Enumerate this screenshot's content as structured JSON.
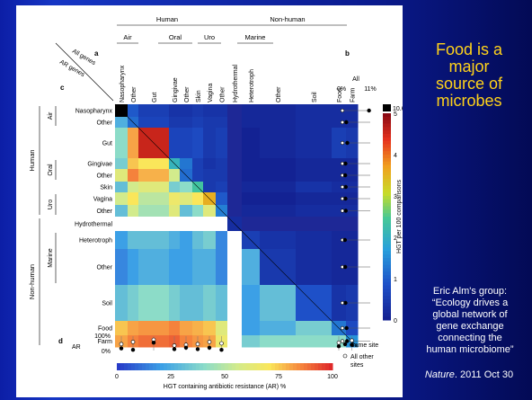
{
  "slide": {
    "headline": [
      "Food is a",
      "major",
      "source of",
      "microbes"
    ],
    "citation": [
      "Eric Alm's group:",
      "“Ecology drives a",
      "global network of",
      "gene exchange",
      "connecting the",
      "human microbiome”"
    ],
    "journal_name": "Nature",
    "journal_date": ". 2011 Oct 30",
    "colors": {
      "headline": "#ffd21a",
      "background": "#0c1ea6"
    }
  },
  "figure": {
    "panel_labels": {
      "a": "a",
      "b": "b",
      "c": "c",
      "d": "d"
    },
    "diag_labels": {
      "all_genes": "All genes",
      "ar_genes": "AR genes"
    },
    "top_groups": {
      "human": "Human",
      "non_human": "Non-human"
    },
    "top_subgroups": [
      "Air",
      "Oral",
      "Uro",
      "Marine"
    ],
    "left_groups": {
      "human": "Human",
      "non_human": "Non-human"
    },
    "left_subgroups": [
      "Air",
      "Oral",
      "Uro",
      "Marine"
    ],
    "columns": [
      "Nasopharynx",
      "Other",
      "Gut",
      "Gingivae",
      "Other",
      "Skin",
      "Vagina",
      "Other",
      "Hydrothermal",
      "Heterotroph",
      "Other",
      "Soil",
      "Food",
      "Farm"
    ],
    "rows": [
      "Nasopharynx",
      "Other",
      "Gut",
      "Gingivae",
      "Other",
      "Skin",
      "Vagina",
      "Other",
      "Hydrothermal",
      "Heterotroph",
      "Other",
      "Soil",
      "Food",
      "Farm"
    ],
    "panel_b": {
      "header": "All",
      "tick_low": "0%",
      "tick_high": "11%"
    },
    "colorbar_right": {
      "label": "HGT per 100 comparisons",
      "top_value": "10.6",
      "ticks": [
        "5",
        "4",
        "3",
        "2",
        "1",
        "0"
      ]
    },
    "panel_d": {
      "label": "AR",
      "ticks": [
        "100%",
        "0%"
      ],
      "legend_same": "Same site",
      "legend_other": "All other",
      "legend_other2": "sites"
    },
    "colorbar_bottom": {
      "label": "HGT containing antibiotic resistance (AR) %",
      "ticks": [
        "0",
        "25",
        "50",
        "75",
        "100"
      ]
    }
  },
  "chart_data": {
    "type": "heatmap",
    "title": "",
    "rows": [
      "Nasopharynx",
      "Other",
      "Gut",
      "Gingivae",
      "Other",
      "Skin",
      "Vagina",
      "Other",
      "Hydrothermal",
      "Heterotroph",
      "Other",
      "Soil",
      "Food",
      "Farm"
    ],
    "columns": [
      "Nasopharynx",
      "Other",
      "Gut",
      "Gingivae",
      "Other",
      "Skin",
      "Vagina",
      "Other",
      "Hydrothermal",
      "Heterotroph",
      "Other",
      "Soil",
      "Food",
      "Farm"
    ],
    "upper_triangle": "HGT per 100 comparisons",
    "upper_range": [
      0,
      5
    ],
    "lower_triangle": "HGT containing antibiotic resistance (AR) %",
    "lower_range": [
      0,
      100
    ],
    "upper_values": [
      [
        10.6,
        1.0,
        0.6,
        0.4,
        0.4,
        0.5,
        0.4,
        0.4,
        0.1,
        0.2,
        0.2,
        0.3,
        0.3,
        0.3
      ],
      [
        1.0,
        1.2,
        0.7,
        0.5,
        0.5,
        0.6,
        0.5,
        0.5,
        0.1,
        0.2,
        0.2,
        0.3,
        0.3,
        0.3
      ],
      [
        0.6,
        0.7,
        4.6,
        0.7,
        0.7,
        0.8,
        0.5,
        0.6,
        0.1,
        0.1,
        0.2,
        0.3,
        0.6,
        0.5
      ],
      [
        0.4,
        0.5,
        0.7,
        2.1,
        1.3,
        0.6,
        0.4,
        0.5,
        0.1,
        0.1,
        0.1,
        0.2,
        0.2,
        0.2
      ],
      [
        0.4,
        0.5,
        0.7,
        1.3,
        1.2,
        0.6,
        0.5,
        0.5,
        0.1,
        0.1,
        0.1,
        0.2,
        0.2,
        0.2
      ],
      [
        0.5,
        0.6,
        0.8,
        0.6,
        0.6,
        2.4,
        0.5,
        0.6,
        0.1,
        0.2,
        0.2,
        0.4,
        0.3,
        0.3
      ],
      [
        0.4,
        0.5,
        0.5,
        0.4,
        0.5,
        0.5,
        3.6,
        1.0,
        0.1,
        0.1,
        0.1,
        0.2,
        0.2,
        0.2
      ],
      [
        0.4,
        0.5,
        0.6,
        0.5,
        0.5,
        0.6,
        1.0,
        1.4,
        0.1,
        0.2,
        0.2,
        0.3,
        0.3,
        0.3
      ],
      [
        0.1,
        0.1,
        0.1,
        0.1,
        0.1,
        0.1,
        0.1,
        0.1,
        0.3,
        0.2,
        0.2,
        0.1,
        0.1,
        0.1
      ],
      [
        0.2,
        0.2,
        0.1,
        0.1,
        0.1,
        0.2,
        0.1,
        0.2,
        0.2,
        0.6,
        0.4,
        0.3,
        0.2,
        0.2
      ],
      [
        0.2,
        0.2,
        0.2,
        0.1,
        0.1,
        0.2,
        0.1,
        0.2,
        0.2,
        0.4,
        0.5,
        0.3,
        0.2,
        0.2
      ],
      [
        0.3,
        0.3,
        0.3,
        0.2,
        0.2,
        0.4,
        0.2,
        0.3,
        0.1,
        0.3,
        0.3,
        0.9,
        0.4,
        0.5
      ],
      [
        0.3,
        0.3,
        0.6,
        0.2,
        0.2,
        0.3,
        0.2,
        0.3,
        0.1,
        0.2,
        0.2,
        0.4,
        1.3,
        0.8
      ],
      [
        0.3,
        0.3,
        0.5,
        0.2,
        0.2,
        0.3,
        0.2,
        0.3,
        0.1,
        0.2,
        0.2,
        0.5,
        0.8,
        1.6
      ]
    ],
    "lower_ar_percent": [
      [
        null,
        null,
        null,
        null,
        null,
        null,
        null,
        null,
        null,
        null,
        null,
        null,
        null,
        null
      ],
      [
        25,
        null,
        null,
        null,
        null,
        null,
        null,
        null,
        null,
        null,
        null,
        null,
        null,
        null
      ],
      [
        40,
        80,
        null,
        null,
        null,
        null,
        null,
        null,
        null,
        null,
        null,
        null,
        null,
        null
      ],
      [
        35,
        75,
        70,
        null,
        null,
        null,
        null,
        null,
        null,
        null,
        null,
        null,
        null,
        null
      ],
      [
        60,
        85,
        78,
        55,
        null,
        null,
        null,
        null,
        null,
        null,
        null,
        null,
        null,
        null
      ],
      [
        30,
        55,
        60,
        35,
        40,
        null,
        null,
        null,
        null,
        null,
        null,
        null,
        null,
        null
      ],
      [
        55,
        70,
        50,
        65,
        60,
        70,
        null,
        null,
        null,
        null,
        null,
        null,
        null,
        null
      ],
      [
        30,
        55,
        45,
        60,
        30,
        40,
        60,
        null,
        null,
        null,
        null,
        null,
        null,
        null
      ],
      [
        null,
        null,
        null,
        null,
        null,
        null,
        null,
        null,
        null,
        null,
        null,
        null,
        null,
        null
      ],
      [
        20,
        30,
        30,
        25,
        20,
        30,
        35,
        15,
        null,
        null,
        null,
        null,
        null,
        null
      ],
      [
        15,
        20,
        25,
        20,
        20,
        25,
        25,
        15,
        null,
        25,
        null,
        null,
        null,
        null
      ],
      [
        30,
        35,
        40,
        35,
        30,
        30,
        35,
        30,
        null,
        20,
        30,
        null,
        null,
        null
      ],
      [
        75,
        80,
        82,
        85,
        80,
        78,
        75,
        60,
        null,
        20,
        25,
        35,
        null,
        null
      ],
      [
        80,
        85,
        88,
        90,
        85,
        82,
        80,
        65,
        null,
        35,
        40,
        40,
        40,
        null
      ]
    ],
    "panel_b_all_percent": [
      9.5,
      0.8,
      1.2,
      0.5,
      0.4,
      0.6,
      0.5,
      0.6,
      null,
      0.3,
      0.4,
      0.5,
      0.9,
      1.1
    ],
    "panel_d_ar_percent": {
      "same_site": [
        15,
        5,
        55,
        10,
        20,
        10,
        20,
        5,
        null,
        null,
        null,
        null,
        30,
        40
      ],
      "all_other_sites": [
        45,
        60,
        75,
        35,
        40,
        45,
        60,
        50,
        null,
        null,
        null,
        null,
        55,
        70
      ]
    },
    "colorbar_range": [
      0,
      5
    ]
  }
}
